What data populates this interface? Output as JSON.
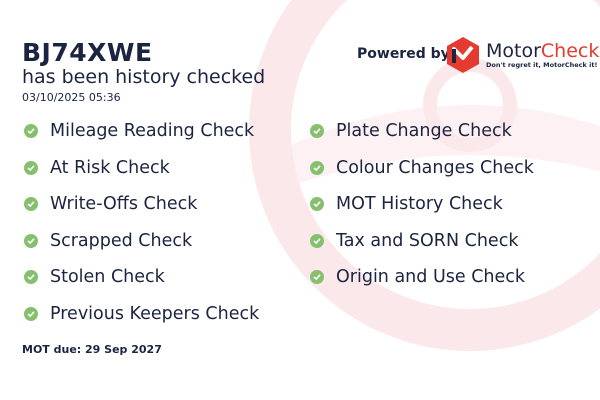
{
  "report": {
    "plate": "BJ74XWE",
    "subtitle": "has been history checked",
    "datetime": "03/10/2025 05:36",
    "mot_due": "MOT due: 29 Sep 2027"
  },
  "branding": {
    "powered_by": "Powered by",
    "brand_part1": "Motor",
    "brand_part2": "Check",
    "tagline": "Don't regret it, MotorCheck it!",
    "brand_color": "#e43a2f"
  },
  "checks_left": [
    {
      "label": "Mileage Reading Check",
      "icon": "check-circle-icon"
    },
    {
      "label": "At Risk Check",
      "icon": "check-circle-icon"
    },
    {
      "label": "Write-Offs Check",
      "icon": "check-circle-icon"
    },
    {
      "label": "Scrapped Check",
      "icon": "check-circle-icon"
    },
    {
      "label": "Stolen Check",
      "icon": "check-circle-icon"
    },
    {
      "label": "Previous Keepers Check",
      "icon": "check-circle-icon"
    }
  ],
  "checks_right": [
    {
      "label": "Plate Change Check",
      "icon": "check-circle-icon"
    },
    {
      "label": "Colour Changes Check",
      "icon": "check-circle-icon"
    },
    {
      "label": "MOT History Check",
      "icon": "check-circle-icon"
    },
    {
      "label": "Tax and SORN Check",
      "icon": "check-circle-icon"
    },
    {
      "label": "Origin and Use Check",
      "icon": "check-circle-icon"
    }
  ],
  "colors": {
    "text": "#1b2440",
    "check": "#86c06f",
    "watermark": "#fbe8eb"
  }
}
